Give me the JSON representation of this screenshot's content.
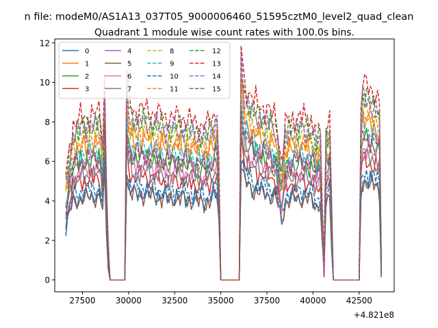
{
  "figure": {
    "suptitle": "n file: modeM0/AS1A13_037T05_9000006460_51595cztM0_level2_quad_clean",
    "offset_text": "+4.821e8"
  },
  "chart_data": {
    "type": "line",
    "title": "Quadrant 1 module wise count rates with 100.0s bins.",
    "xlabel": "",
    "ylabel": "",
    "x_offset": 482100000,
    "xlim": [
      26000,
      44400
    ],
    "ylim": [
      -0.6,
      12.2
    ],
    "xticks": [
      27500,
      30000,
      32500,
      35000,
      37500,
      40000,
      42500
    ],
    "xtick_labels": [
      "27500",
      "30000",
      "32500",
      "35000",
      "37500",
      "40000",
      "42500"
    ],
    "yticks": [
      0,
      2,
      4,
      6,
      8,
      10,
      12
    ],
    "ytick_labels": [
      "0",
      "2",
      "4",
      "6",
      "8",
      "10",
      "12"
    ],
    "grid": false,
    "legend": {
      "placement": "top-left",
      "columns": 4
    },
    "x_start": 26600,
    "x_step": 100,
    "gaps": [
      [
        29200,
        29800
      ],
      [
        35100,
        36000
      ],
      [
        41300,
        42500
      ]
    ],
    "base_profile": [
      [
        26600,
        0.62
      ],
      [
        26800,
        0.82
      ],
      [
        27000,
        0.96
      ],
      [
        27500,
        1.0
      ],
      [
        28000,
        1.02
      ],
      [
        28450,
        1.03
      ],
      [
        28600,
        0.85
      ],
      [
        28700,
        1.28
      ],
      [
        28800,
        0.62
      ],
      [
        28900,
        0.2
      ],
      [
        29000,
        0.0
      ],
      [
        29800,
        0.0
      ],
      [
        29900,
        1.3
      ],
      [
        30000,
        1.12
      ],
      [
        30200,
        1.05
      ],
      [
        31000,
        1.05
      ],
      [
        32000,
        1.0
      ],
      [
        33000,
        1.0
      ],
      [
        33800,
        0.96
      ],
      [
        34300,
        0.95
      ],
      [
        34800,
        1.06
      ],
      [
        34900,
        0.7
      ],
      [
        35000,
        0.0
      ],
      [
        36000,
        0.0
      ],
      [
        36100,
        1.45
      ],
      [
        36300,
        1.2
      ],
      [
        36800,
        1.1
      ],
      [
        37500,
        1.05
      ],
      [
        38000,
        1.0
      ],
      [
        38300,
        0.72
      ],
      [
        38500,
        0.95
      ],
      [
        39000,
        1.0
      ],
      [
        39500,
        1.0
      ],
      [
        40000,
        0.98
      ],
      [
        40200,
        0.9
      ],
      [
        40400,
        0.95
      ],
      [
        40500,
        0.4
      ],
      [
        40600,
        0.15
      ],
      [
        40700,
        0.95
      ],
      [
        40900,
        1.0
      ],
      [
        41000,
        0.55
      ],
      [
        41100,
        0.0
      ],
      [
        42500,
        0.0
      ],
      [
        42600,
        1.1
      ],
      [
        42700,
        1.22
      ],
      [
        43000,
        1.18
      ],
      [
        43400,
        1.15
      ],
      [
        43600,
        1.1
      ],
      [
        43700,
        0.1
      ]
    ],
    "series": [
      {
        "name": "0",
        "color": "#1f77b4",
        "dash": "solid",
        "level": 4.2
      },
      {
        "name": "1",
        "color": "#ff7f0e",
        "dash": "solid",
        "level": 6.7
      },
      {
        "name": "2",
        "color": "#2ca02c",
        "dash": "solid",
        "level": 5.9
      },
      {
        "name": "3",
        "color": "#d62728",
        "dash": "solid",
        "level": 5.0
      },
      {
        "name": "4",
        "color": "#9467bd",
        "dash": "solid",
        "level": 6.1
      },
      {
        "name": "5",
        "color": "#8c564b",
        "dash": "solid",
        "level": 4.1
      },
      {
        "name": "6",
        "color": "#e377c2",
        "dash": "solid",
        "level": 5.5
      },
      {
        "name": "7",
        "color": "#7f7f7f",
        "dash": "solid",
        "level": 5.2
      },
      {
        "name": "8",
        "color": "#bcbd22",
        "dash": "dashed",
        "level": 7.3
      },
      {
        "name": "9",
        "color": "#17becf",
        "dash": "dashed",
        "level": 6.4
      },
      {
        "name": "10",
        "color": "#1f77b4",
        "dash": "dashed",
        "level": 4.5
      },
      {
        "name": "11",
        "color": "#ff7f0e",
        "dash": "dashed",
        "level": 7.0
      },
      {
        "name": "12",
        "color": "#2ca02c",
        "dash": "dashed",
        "level": 7.7
      },
      {
        "name": "13",
        "color": "#d62728",
        "dash": "dashed",
        "level": 8.2
      },
      {
        "name": "14",
        "color": "#9467bd",
        "dash": "dashed",
        "level": 7.6
      },
      {
        "name": "15",
        "color": "#8c564b",
        "dash": "dashed",
        "level": 6.0
      }
    ]
  }
}
